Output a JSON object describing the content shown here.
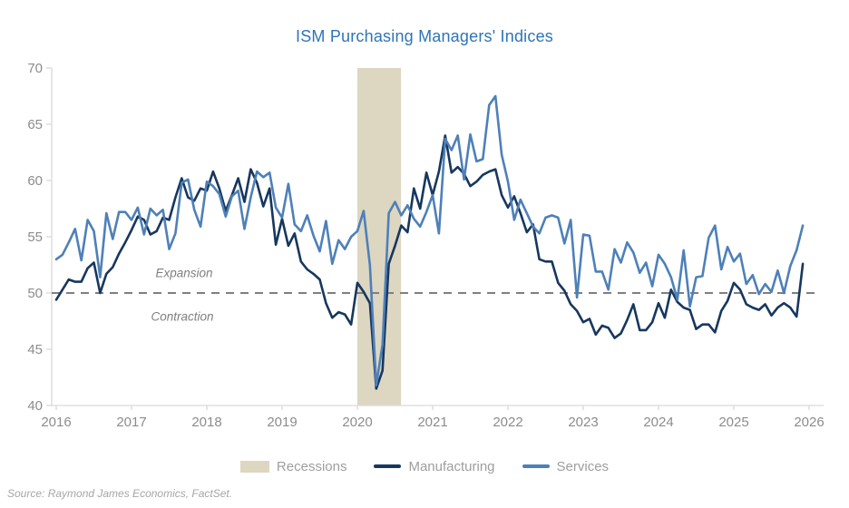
{
  "title": "ISM Purchasing Managers' Indices",
  "annotations": {
    "expansion": "Expansion",
    "contraction": "Contraction"
  },
  "source": "Source: Raymond James Economics, FactSet.",
  "legend": [
    {
      "label": "Recessions",
      "type": "band",
      "color": "#DDD6C1"
    },
    {
      "label": "Manufacturing",
      "type": "line",
      "color": "#17375E"
    },
    {
      "label": "Services",
      "type": "line",
      "color": "#4E80B8"
    }
  ],
  "colors": {
    "title": "#2E75B6",
    "manufacturing": "#17375E",
    "services": "#4E80B8",
    "recession_band": "#DDD6C1",
    "reference_dash": "#7F7F7F",
    "axis_line": "#D9D9D9",
    "axis_text": "#8C8C8C"
  },
  "chart_data": {
    "type": "line",
    "title": "ISM Purchasing Managers' Indices",
    "frequency": "monthly",
    "x_start_year": 2016,
    "x_tick_labels": [
      "2016",
      "2017",
      "2018",
      "2019",
      "2020",
      "2021",
      "2022",
      "2023",
      "2024",
      "2025",
      "2026"
    ],
    "y_ticks": [
      40,
      45,
      50,
      55,
      60,
      65,
      70
    ],
    "ylim": [
      40,
      70
    ],
    "grid": false,
    "legend_position": "bottom",
    "reference_line": 50,
    "reference_labels": {
      "above": "Expansion",
      "below": "Contraction"
    },
    "recession_band": {
      "label": "Recessions",
      "start_year": 2020.0,
      "end_year": 2020.58
    },
    "series": [
      {
        "name": "Manufacturing",
        "color": "#17375E",
        "values": [
          49.4,
          50.3,
          51.2,
          51.0,
          51.0,
          52.2,
          52.7,
          50.0,
          51.7,
          52.3,
          53.5,
          54.5,
          55.6,
          56.8,
          56.5,
          55.2,
          55.5,
          56.7,
          56.5,
          58.5,
          60.2,
          58.5,
          58.2,
          59.3,
          59.1,
          60.8,
          59.3,
          57.3,
          58.7,
          60.2,
          58.1,
          61.0,
          59.8,
          57.7,
          59.3,
          54.3,
          56.6,
          54.2,
          55.3,
          52.8,
          52.1,
          51.7,
          51.2,
          49.1,
          47.8,
          48.3,
          48.1,
          47.2,
          50.9,
          50.1,
          49.1,
          41.5,
          43.1,
          52.6,
          54.2,
          56.0,
          55.4,
          59.3,
          57.5,
          60.7,
          58.7,
          60.8,
          64.0,
          60.7,
          61.2,
          60.6,
          59.5,
          59.9,
          60.5,
          60.8,
          61.0,
          58.7,
          57.6,
          58.6,
          57.1,
          55.4,
          56.1,
          53.0,
          52.8,
          52.8,
          50.9,
          50.2,
          49.0,
          48.4,
          47.4,
          47.7,
          46.3,
          47.1,
          46.9,
          46.0,
          46.4,
          47.6,
          49.0,
          46.7,
          46.7,
          47.4,
          49.1,
          47.8,
          50.3,
          49.2,
          48.7,
          48.5,
          46.8,
          47.2,
          47.2,
          46.5,
          48.4,
          49.3,
          50.9,
          50.3,
          49.0,
          48.7,
          48.5,
          49.0,
          48.0,
          48.7,
          49.1,
          48.7,
          47.9,
          52.6
        ]
      },
      {
        "name": "Services",
        "color": "#4E80B8",
        "values": [
          53.0,
          53.4,
          54.5,
          55.7,
          52.9,
          56.5,
          55.5,
          51.4,
          57.1,
          54.8,
          57.2,
          57.2,
          56.5,
          57.6,
          55.2,
          57.5,
          56.9,
          57.4,
          53.9,
          55.3,
          59.8,
          60.1,
          57.4,
          55.9,
          59.9,
          59.5,
          58.8,
          56.8,
          58.6,
          59.1,
          55.7,
          58.5,
          60.8,
          60.3,
          60.7,
          57.6,
          56.7,
          59.7,
          56.1,
          55.5,
          56.9,
          55.1,
          53.7,
          56.4,
          52.6,
          54.7,
          53.9,
          55.0,
          55.5,
          57.3,
          52.5,
          41.8,
          45.4,
          57.1,
          58.1,
          56.9,
          57.8,
          56.6,
          55.9,
          57.2,
          58.7,
          55.3,
          63.7,
          62.7,
          64.0,
          60.1,
          64.1,
          61.7,
          61.9,
          66.7,
          67.5,
          62.3,
          59.9,
          56.5,
          58.3,
          57.1,
          55.9,
          55.3,
          56.7,
          56.9,
          56.7,
          54.4,
          56.5,
          49.6,
          55.2,
          55.1,
          51.9,
          51.9,
          50.3,
          53.9,
          52.7,
          54.5,
          53.6,
          51.8,
          52.7,
          50.6,
          53.4,
          52.6,
          51.4,
          49.4,
          53.8,
          48.8,
          51.4,
          51.5,
          54.9,
          56.0,
          52.1,
          54.1,
          52.8,
          53.5,
          50.8,
          51.6,
          49.9,
          50.8,
          50.1,
          52.0,
          50.0,
          52.4,
          53.8,
          56.0
        ]
      }
    ]
  }
}
